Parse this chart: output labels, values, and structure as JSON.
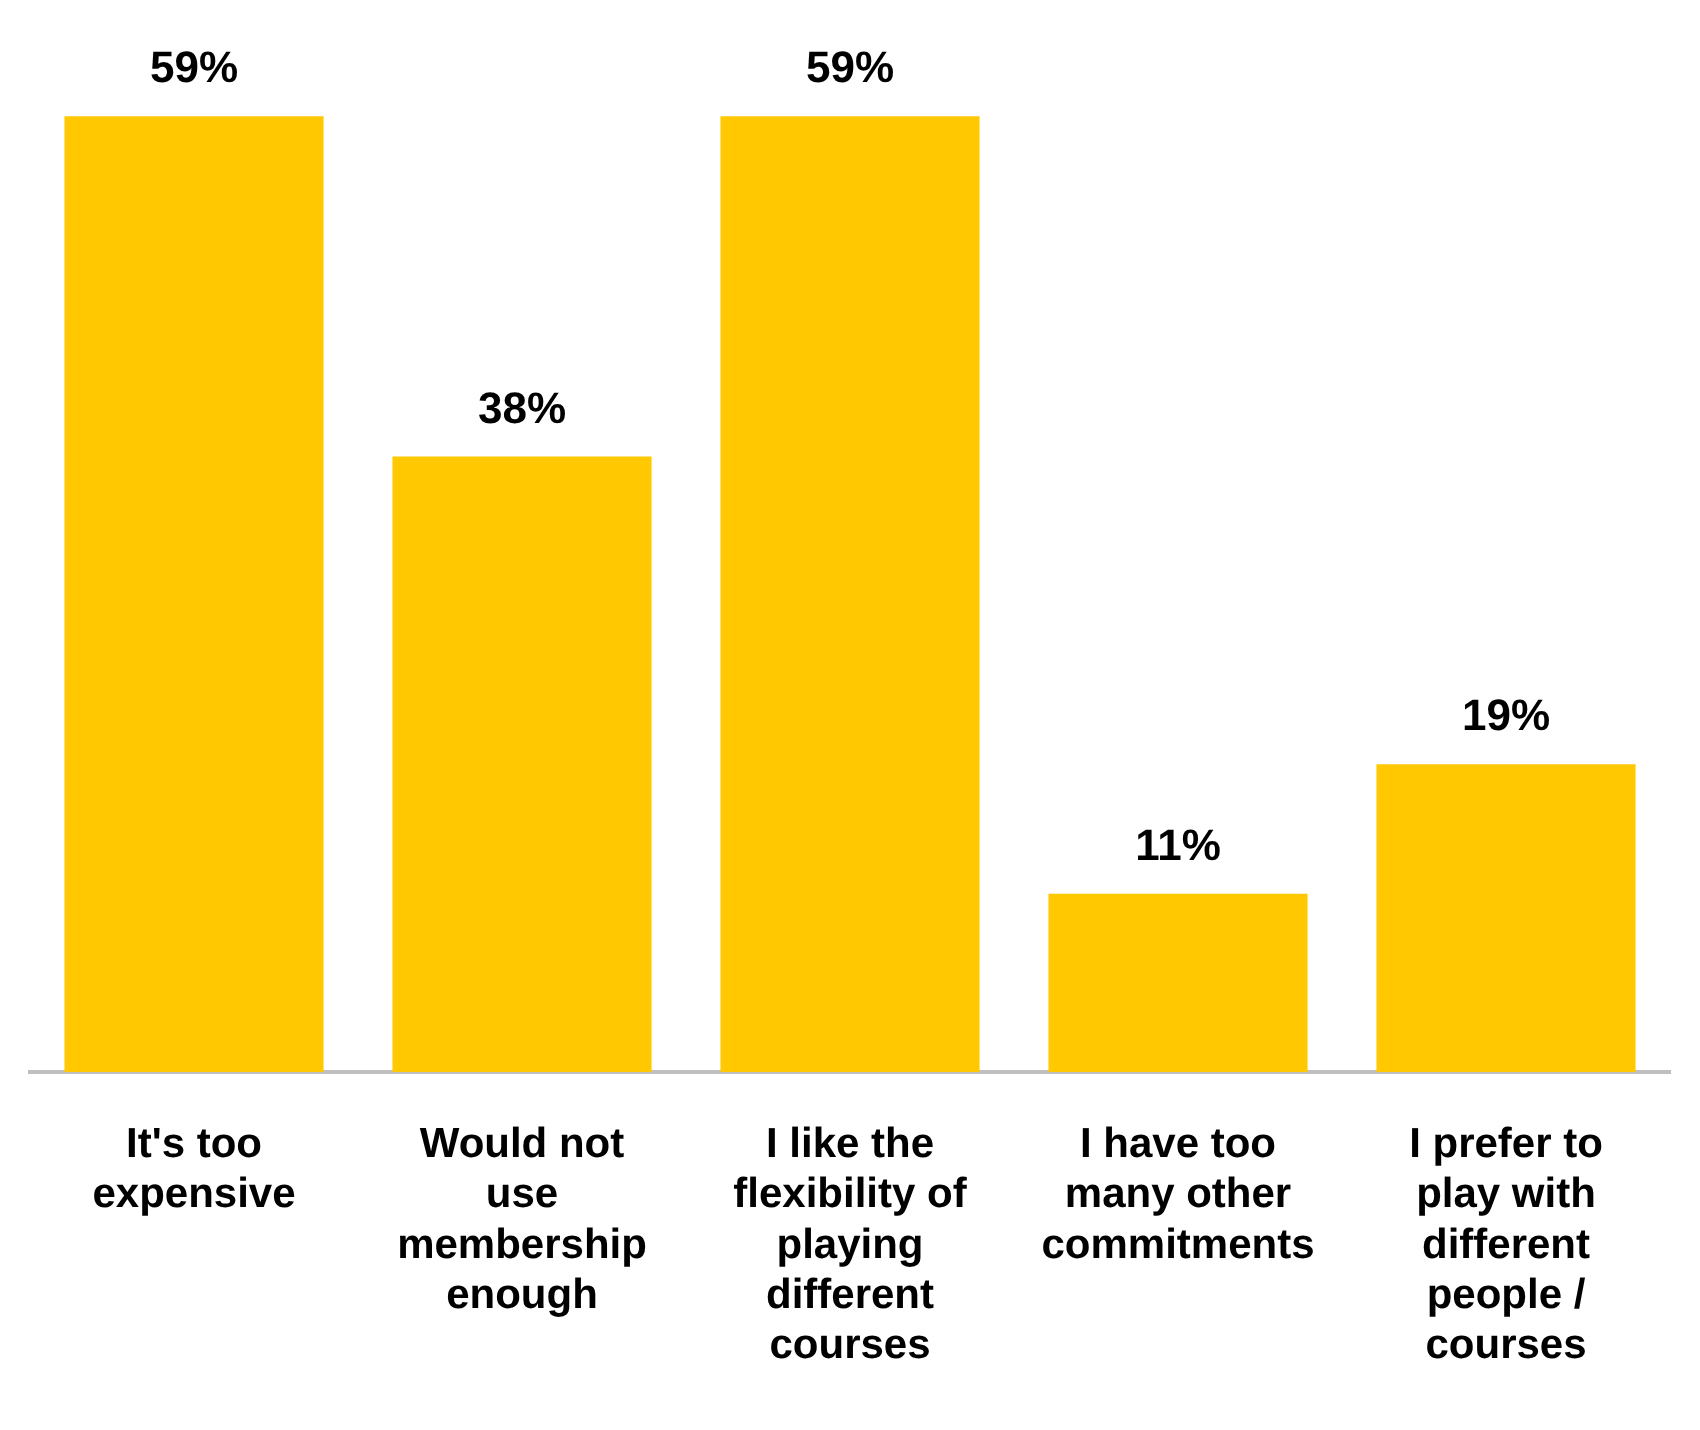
{
  "chart_data": {
    "type": "bar",
    "categories": [
      "It's too expensive",
      "Would not use membership enough",
      "I like the flexibility of playing different courses",
      "I have too many other commitments",
      "I prefer to play with different people / courses"
    ],
    "values": [
      59,
      38,
      59,
      11,
      19
    ],
    "color": "#ffc800",
    "value_labels": [
      "59%",
      "38%",
      "59%",
      "11%",
      "19%"
    ],
    "grid": false,
    "legend": false
  }
}
